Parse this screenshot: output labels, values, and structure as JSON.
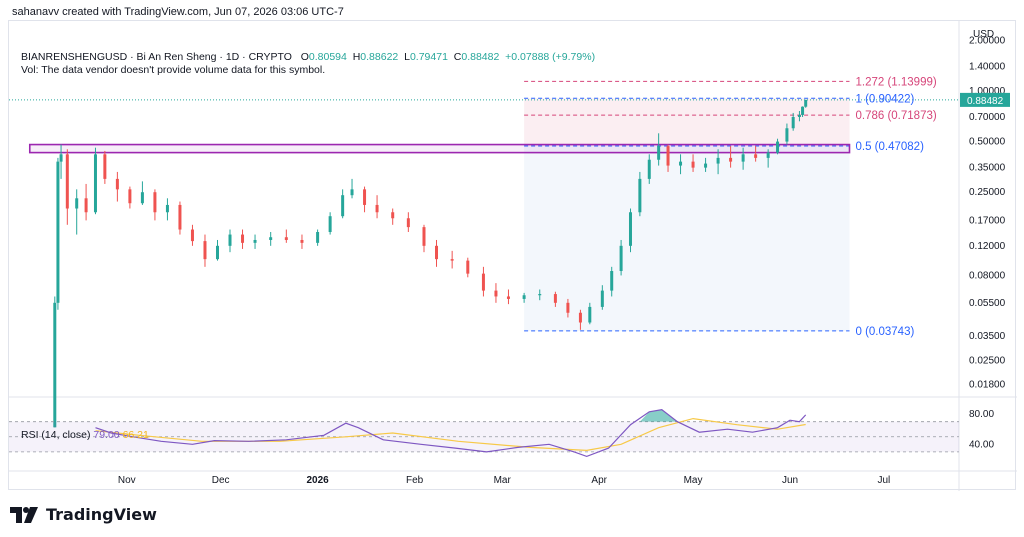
{
  "header": {
    "caption": "sahanavv created with TradingView.com, Jun 07, 2026 03:06 UTC-7"
  },
  "legend": {
    "symbol": "BIANRENSHENGUSD · Bi An Ren Sheng · 1D · CRYPTO",
    "open_label": "O",
    "open": "0.80594",
    "high_label": "H",
    "high": "0.88622",
    "low_label": "L",
    "low": "0.79471",
    "close_label": "C",
    "close": "0.88482",
    "change": "+0.07888 (+9.79%)",
    "volume_note": "Vol: The data vendor doesn't provide volume data for this symbol."
  },
  "rsi": {
    "title": "RSI (14, close)",
    "value": "79.00",
    "ma_value": "66.21",
    "scale_labels": [
      "80.00",
      "40.00"
    ]
  },
  "price_axis": {
    "currency": "USD",
    "labels": [
      "2.00000",
      "1.40000",
      "1.00000",
      "0.70000",
      "0.50000",
      "0.35000",
      "0.25000",
      "0.17000",
      "0.12000",
      "0.08000",
      "0.05500",
      "0.03500",
      "0.02500",
      "0.01800"
    ],
    "last_price": "0.88482"
  },
  "time_axis": {
    "labels": [
      "Nov",
      "Dec",
      "2026",
      "Feb",
      "Mar",
      "Apr",
      "May",
      "Jun",
      "Jul"
    ]
  },
  "fib_levels": [
    {
      "label": "1.272 (1.13999)",
      "price": 1.13999,
      "color": "#d6457a"
    },
    {
      "label": "1 (0.90422)",
      "price": 0.90422,
      "color": "#2962ff"
    },
    {
      "label": "0.786 (0.71873)",
      "price": 0.71873,
      "color": "#d6457a"
    },
    {
      "label": "0.5 (0.47082)",
      "price": 0.47082,
      "color": "#2962ff"
    },
    {
      "label": "0 (0.03743)",
      "price": 0.03743,
      "color": "#2962ff"
    }
  ],
  "colors": {
    "up": "#26a69a",
    "down": "#ef5350",
    "rsi_line": "#7e57c2",
    "rsi_ma": "#f7c948",
    "zone_box": "#9c27b0",
    "price_tag": "#26a69a"
  },
  "footer": {
    "brand": "TradingView"
  },
  "chart_data": {
    "type": "candlestick",
    "title": "BIANRENSHENGUSD · Bi An Ren Sheng · 1D · CRYPTO",
    "scale": "log",
    "ylim": [
      0.016,
      2.4
    ],
    "x_range": [
      "2025-09-25",
      "2026-07-25"
    ],
    "x_ticks": [
      "Nov",
      "Dec",
      "2026",
      "Feb",
      "Mar",
      "Apr",
      "May",
      "Jun",
      "Jul"
    ],
    "fib_retracement": {
      "low": 0.03743,
      "high": 0.90422,
      "levels": [
        [
          1.272,
          1.13999
        ],
        [
          1,
          0.90422
        ],
        [
          0.786,
          0.71873
        ],
        [
          0.5,
          0.47082
        ],
        [
          0,
          0.03743
        ]
      ]
    },
    "resistance_zone": [
      0.43,
      0.48
    ],
    "series": [
      {
        "name": "BIANRENSHENGUSD",
        "points": [
          [
            "2025-10-09",
            0.01,
            0.06,
            0.01,
            0.055
          ],
          [
            "2025-10-10",
            0.055,
            0.4,
            0.05,
            0.38
          ],
          [
            "2025-10-11",
            0.38,
            0.48,
            0.3,
            0.42
          ],
          [
            "2025-10-13",
            0.42,
            0.45,
            0.16,
            0.2
          ],
          [
            "2025-10-16",
            0.2,
            0.26,
            0.14,
            0.23
          ],
          [
            "2025-10-19",
            0.23,
            0.28,
            0.17,
            0.19
          ],
          [
            "2025-10-22",
            0.19,
            0.46,
            0.185,
            0.42
          ],
          [
            "2025-10-25",
            0.42,
            0.44,
            0.28,
            0.3
          ],
          [
            "2025-10-29",
            0.3,
            0.33,
            0.22,
            0.26
          ],
          [
            "2025-11-02",
            0.26,
            0.27,
            0.2,
            0.215
          ],
          [
            "2025-11-06",
            0.215,
            0.29,
            0.21,
            0.25
          ],
          [
            "2025-11-10",
            0.25,
            0.26,
            0.17,
            0.19
          ],
          [
            "2025-11-14",
            0.19,
            0.23,
            0.17,
            0.21
          ],
          [
            "2025-11-18",
            0.21,
            0.22,
            0.14,
            0.15
          ],
          [
            "2025-11-22",
            0.15,
            0.16,
            0.12,
            0.128
          ],
          [
            "2025-11-26",
            0.128,
            0.14,
            0.09,
            0.1
          ],
          [
            "2025-11-30",
            0.1,
            0.13,
            0.098,
            0.12
          ],
          [
            "2025-12-04",
            0.12,
            0.15,
            0.11,
            0.14
          ],
          [
            "2025-12-08",
            0.14,
            0.15,
            0.115,
            0.125
          ],
          [
            "2025-12-12",
            0.125,
            0.14,
            0.115,
            0.13
          ],
          [
            "2025-12-17",
            0.13,
            0.145,
            0.12,
            0.135
          ],
          [
            "2025-12-22",
            0.135,
            0.15,
            0.125,
            0.13
          ],
          [
            "2025-12-27",
            0.13,
            0.14,
            0.115,
            0.125
          ],
          [
            "2026-01-01",
            0.125,
            0.15,
            0.12,
            0.145
          ],
          [
            "2026-01-05",
            0.145,
            0.19,
            0.14,
            0.18
          ],
          [
            "2026-01-09",
            0.18,
            0.26,
            0.175,
            0.24
          ],
          [
            "2026-01-12",
            0.24,
            0.3,
            0.23,
            0.26
          ],
          [
            "2026-01-16",
            0.26,
            0.27,
            0.19,
            0.21
          ],
          [
            "2026-01-20",
            0.21,
            0.24,
            0.175,
            0.19
          ],
          [
            "2026-01-25",
            0.19,
            0.2,
            0.16,
            0.175
          ],
          [
            "2026-01-30",
            0.175,
            0.19,
            0.145,
            0.155
          ],
          [
            "2026-02-04",
            0.155,
            0.16,
            0.11,
            0.12
          ],
          [
            "2026-02-08",
            0.12,
            0.13,
            0.09,
            0.1
          ],
          [
            "2026-02-13",
            0.1,
            0.112,
            0.088,
            0.098
          ],
          [
            "2026-02-18",
            0.098,
            0.102,
            0.078,
            0.082
          ],
          [
            "2026-02-23",
            0.082,
            0.09,
            0.06,
            0.065
          ],
          [
            "2026-02-27",
            0.065,
            0.072,
            0.055,
            0.06
          ],
          [
            "2026-03-03",
            0.06,
            0.066,
            0.054,
            0.058
          ],
          [
            "2026-03-08",
            0.058,
            0.063,
            0.055,
            0.061
          ],
          [
            "2026-03-13",
            0.061,
            0.066,
            0.057,
            0.062
          ],
          [
            "2026-03-18",
            0.062,
            0.064,
            0.052,
            0.055
          ],
          [
            "2026-03-22",
            0.055,
            0.058,
            0.045,
            0.048
          ],
          [
            "2026-03-26",
            0.048,
            0.05,
            0.038,
            0.042
          ],
          [
            "2026-03-29",
            0.042,
            0.055,
            0.041,
            0.052
          ],
          [
            "2026-04-02",
            0.052,
            0.07,
            0.05,
            0.065
          ],
          [
            "2026-04-05",
            0.065,
            0.09,
            0.06,
            0.085
          ],
          [
            "2026-04-08",
            0.085,
            0.13,
            0.08,
            0.12
          ],
          [
            "2026-04-11",
            0.12,
            0.2,
            0.11,
            0.19
          ],
          [
            "2026-04-14",
            0.19,
            0.33,
            0.18,
            0.3
          ],
          [
            "2026-04-17",
            0.3,
            0.42,
            0.28,
            0.39
          ],
          [
            "2026-04-20",
            0.39,
            0.56,
            0.36,
            0.47
          ],
          [
            "2026-04-23",
            0.47,
            0.48,
            0.33,
            0.36
          ],
          [
            "2026-04-27",
            0.36,
            0.42,
            0.32,
            0.38
          ],
          [
            "2026-05-01",
            0.38,
            0.42,
            0.33,
            0.35
          ],
          [
            "2026-05-05",
            0.35,
            0.4,
            0.33,
            0.37
          ],
          [
            "2026-05-09",
            0.37,
            0.45,
            0.32,
            0.4
          ],
          [
            "2026-05-13",
            0.4,
            0.47,
            0.35,
            0.38
          ],
          [
            "2026-05-17",
            0.38,
            0.46,
            0.34,
            0.42
          ],
          [
            "2026-05-21",
            0.42,
            0.47,
            0.38,
            0.4
          ],
          [
            "2026-05-25",
            0.4,
            0.45,
            0.35,
            0.43
          ],
          [
            "2026-05-28",
            0.43,
            0.52,
            0.42,
            0.5
          ],
          [
            "2026-05-31",
            0.5,
            0.64,
            0.48,
            0.6
          ],
          [
            "2026-06-02",
            0.6,
            0.74,
            0.58,
            0.7
          ],
          [
            "2026-06-04",
            0.7,
            0.76,
            0.66,
            0.72
          ],
          [
            "2026-06-05",
            0.72,
            0.81,
            0.7,
            0.806
          ],
          [
            "2026-06-06",
            0.80594,
            0.88622,
            0.79471,
            0.88482
          ]
        ]
      }
    ],
    "rsi": {
      "period": 14,
      "ylim": [
        10,
        100
      ],
      "bands": [
        70,
        50,
        30
      ],
      "current": 79.0,
      "ma_current": 66.21,
      "points": [
        [
          "2025-10-22",
          62
        ],
        [
          "2025-10-27",
          55
        ],
        [
          "2025-11-03",
          50
        ],
        [
          "2025-11-12",
          44
        ],
        [
          "2025-11-22",
          40
        ],
        [
          "2025-11-29",
          45
        ],
        [
          "2025-12-10",
          44
        ],
        [
          "2025-12-22",
          46
        ],
        [
          "2026-01-03",
          52
        ],
        [
          "2026-01-10",
          68
        ],
        [
          "2026-01-14",
          62
        ],
        [
          "2026-01-22",
          46
        ],
        [
          "2026-02-03",
          40
        ],
        [
          "2026-02-14",
          35
        ],
        [
          "2026-02-24",
          30
        ],
        [
          "2026-03-06",
          36
        ],
        [
          "2026-03-16",
          40
        ],
        [
          "2026-03-24",
          30
        ],
        [
          "2026-03-28",
          24
        ],
        [
          "2026-04-04",
          35
        ],
        [
          "2026-04-11",
          66
        ],
        [
          "2026-04-17",
          83
        ],
        [
          "2026-04-21",
          86
        ],
        [
          "2026-04-26",
          70
        ],
        [
          "2026-05-03",
          56
        ],
        [
          "2026-05-12",
          60
        ],
        [
          "2026-05-20",
          56
        ],
        [
          "2026-05-28",
          62
        ],
        [
          "2026-06-01",
          72
        ],
        [
          "2026-06-04",
          70
        ],
        [
          "2026-06-06",
          79
        ]
      ],
      "ma_points": [
        [
          "2025-10-22",
          58
        ],
        [
          "2025-11-05",
          52
        ],
        [
          "2025-11-25",
          44
        ],
        [
          "2025-12-20",
          44
        ],
        [
          "2026-01-10",
          50
        ],
        [
          "2026-01-25",
          55
        ],
        [
          "2026-02-15",
          44
        ],
        [
          "2026-03-10",
          36
        ],
        [
          "2026-03-28",
          32
        ],
        [
          "2026-04-08",
          40
        ],
        [
          "2026-04-20",
          62
        ],
        [
          "2026-05-01",
          74
        ],
        [
          "2026-05-15",
          66
        ],
        [
          "2026-05-28",
          60
        ],
        [
          "2026-06-06",
          66.21
        ]
      ]
    }
  }
}
